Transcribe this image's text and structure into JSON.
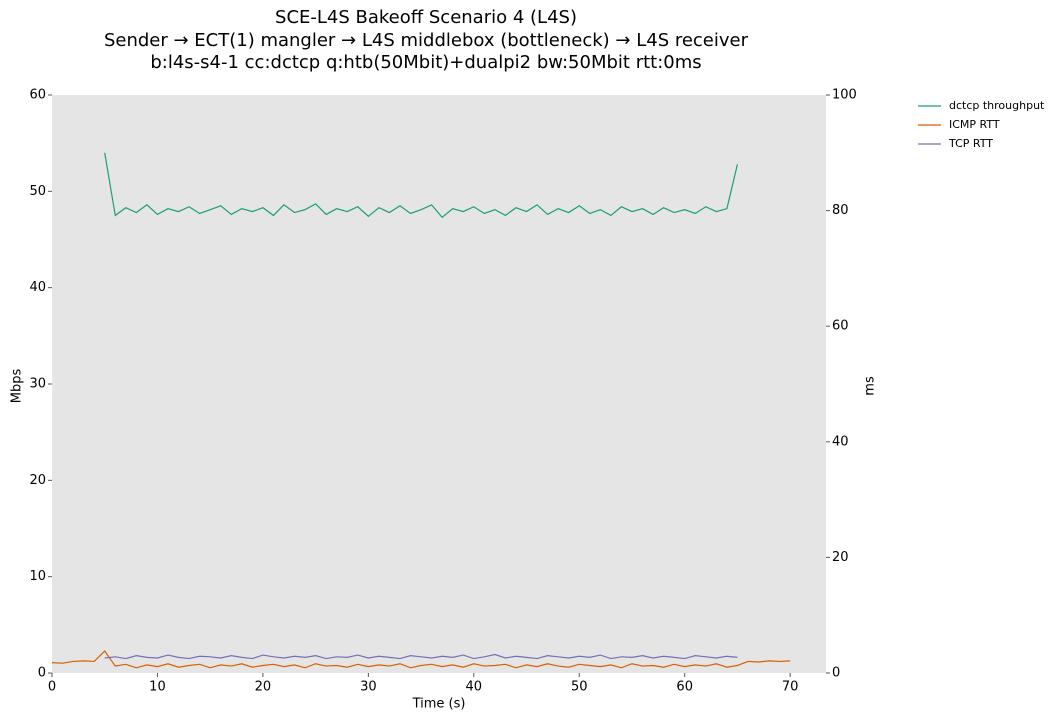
{
  "chart_data": {
    "type": "line",
    "title": [
      "SCE-L4S Bakeoff Scenario 4 (L4S)",
      "Sender → ECT(1) mangler → L4S middlebox (bottleneck) → L4S receiver",
      "b:l4s-s4-1 cc:dctcp q:htb(50Mbit)+dualpi2 bw:50Mbit rtt:0ms"
    ],
    "xlabel": "Time (s)",
    "ylabel": "Mbps",
    "y2label": "ms",
    "x": [
      0,
      1,
      2,
      3,
      4,
      5,
      6,
      7,
      8,
      9,
      10,
      11,
      12,
      13,
      14,
      15,
      16,
      17,
      18,
      19,
      20,
      21,
      22,
      23,
      24,
      25,
      26,
      27,
      28,
      29,
      30,
      31,
      32,
      33,
      34,
      35,
      36,
      37,
      38,
      39,
      40,
      41,
      42,
      43,
      44,
      45,
      46,
      47,
      48,
      49,
      50,
      51,
      52,
      53,
      54,
      55,
      56,
      57,
      58,
      59,
      60,
      61,
      62,
      63,
      64,
      65,
      66,
      67,
      68,
      69,
      70
    ],
    "xlim": [
      0,
      73.4
    ],
    "xticks": [
      0,
      10,
      20,
      30,
      40,
      50,
      60,
      70
    ],
    "ylim": [
      0,
      60
    ],
    "yticks": [
      0,
      10,
      20,
      30,
      40,
      50,
      60
    ],
    "y2lim": [
      0,
      100
    ],
    "y2ticks": [
      0,
      20,
      40,
      60,
      80,
      100
    ],
    "background": "#e5e5e5",
    "legend": "outside-right",
    "series": [
      {
        "name": "dctcp throughput",
        "color": "#1b9e77",
        "axis": "y",
        "values": [
          null,
          null,
          null,
          null,
          null,
          54,
          47.5,
          48.3,
          47.8,
          48.6,
          47.6,
          48.2,
          47.9,
          48.4,
          47.7,
          48.1,
          48.5,
          47.6,
          48.2,
          47.9,
          48.3,
          47.5,
          48.6,
          47.8,
          48.1,
          48.7,
          47.6,
          48.2,
          47.9,
          48.4,
          47.4,
          48.3,
          47.8,
          48.5,
          47.7,
          48.1,
          48.6,
          47.3,
          48.2,
          47.9,
          48.4,
          47.7,
          48.1,
          47.5,
          48.3,
          47.9,
          48.6,
          47.6,
          48.2,
          47.8,
          48.5,
          47.7,
          48.1,
          47.5,
          48.4,
          47.9,
          48.2,
          47.6,
          48.3,
          47.8,
          48.1,
          47.7,
          48.4,
          47.9,
          48.2,
          52.8,
          null,
          null,
          null,
          null,
          null
        ]
      },
      {
        "name": "ICMP RTT",
        "color": "#d95f02",
        "axis": "y2",
        "values": [
          1.8,
          1.7,
          2.0,
          2.1,
          2.0,
          3.8,
          1.2,
          1.5,
          0.9,
          1.4,
          1.1,
          1.6,
          1.0,
          1.3,
          1.5,
          0.9,
          1.4,
          1.2,
          1.6,
          1.0,
          1.3,
          1.5,
          1.1,
          1.4,
          0.9,
          1.6,
          1.2,
          1.3,
          1.0,
          1.5,
          1.1,
          1.4,
          1.2,
          1.6,
          0.9,
          1.3,
          1.5,
          1.1,
          1.4,
          1.0,
          1.6,
          1.2,
          1.3,
          1.5,
          0.9,
          1.4,
          1.1,
          1.6,
          1.2,
          1.0,
          1.5,
          1.3,
          1.1,
          1.4,
          0.9,
          1.6,
          1.2,
          1.3,
          1.0,
          1.5,
          1.1,
          1.4,
          1.2,
          1.6,
          1.0,
          1.3,
          2.0,
          1.9,
          2.1,
          2.0,
          2.1
        ]
      },
      {
        "name": "TCP RTT",
        "color": "#7570b3",
        "axis": "y2",
        "values": [
          null,
          null,
          null,
          null,
          null,
          2.6,
          2.8,
          2.5,
          3.0,
          2.7,
          2.6,
          3.1,
          2.7,
          2.5,
          2.9,
          2.8,
          2.6,
          3.0,
          2.7,
          2.5,
          3.1,
          2.8,
          2.6,
          2.9,
          2.7,
          3.0,
          2.5,
          2.8,
          2.7,
          3.1,
          2.6,
          2.9,
          2.7,
          2.5,
          3.0,
          2.8,
          2.6,
          2.9,
          2.7,
          3.1,
          2.5,
          2.8,
          3.2,
          2.6,
          2.9,
          2.7,
          2.5,
          3.0,
          2.8,
          2.6,
          2.9,
          2.7,
          3.1,
          2.5,
          2.8,
          2.7,
          3.0,
          2.6,
          2.9,
          2.7,
          2.5,
          3.0,
          2.8,
          2.6,
          2.9,
          2.7,
          null,
          null,
          null,
          null,
          null
        ]
      }
    ]
  }
}
